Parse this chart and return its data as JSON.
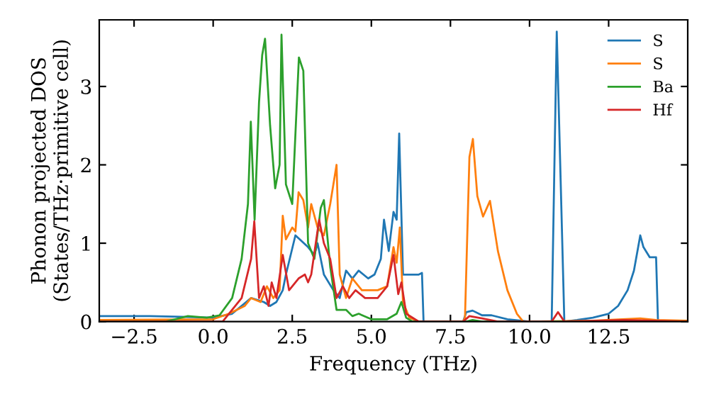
{
  "chart_data": {
    "type": "line",
    "xlabel": "Frequency (THz)",
    "ylabel": "Phonon projected DOS\n(States/THz·primitive cell)",
    "xlim": [
      -3.6,
      15.0
    ],
    "ylim": [
      0,
      3.85
    ],
    "xticks": [
      {
        "value": -2.5,
        "label": "−2.5"
      },
      {
        "value": 0,
        "label": "0.0"
      },
      2.5,
      {
        "value": 5,
        "label": "5.0"
      },
      7.5,
      {
        "value": 10,
        "label": "10.0"
      },
      12.5
    ],
    "yticks": [
      0,
      1,
      2,
      3
    ],
    "grid": false,
    "legend": "top right",
    "marker": "none",
    "line_style": "solid",
    "series": [
      {
        "name": "S",
        "color": "#1f77b4",
        "x": [
          -3.6,
          -2.0,
          -1.0,
          0.0,
          0.6,
          1.2,
          1.6,
          1.8,
          2.0,
          2.2,
          2.3,
          2.6,
          3.0,
          3.2,
          3.3,
          3.5,
          3.8,
          4.0,
          4.2,
          4.4,
          4.6,
          4.9,
          5.1,
          5.3,
          5.4,
          5.55,
          5.7,
          5.8,
          5.88,
          6.0,
          6.5,
          6.6,
          6.65,
          7.9,
          8.0,
          8.2,
          8.5,
          8.8,
          9.3,
          10.0,
          10.7,
          10.86,
          11.1,
          11.5,
          12.0,
          12.5,
          12.8,
          13.1,
          13.3,
          13.5,
          13.6,
          13.8,
          14.0,
          14.06
        ],
        "values": [
          0.07,
          0.07,
          0.06,
          0.05,
          0.1,
          0.3,
          0.25,
          0.2,
          0.25,
          0.4,
          0.6,
          1.1,
          0.95,
          0.85,
          1.0,
          0.6,
          0.4,
          0.3,
          0.65,
          0.55,
          0.65,
          0.55,
          0.6,
          0.8,
          1.3,
          0.9,
          1.4,
          1.3,
          2.4,
          0.6,
          0.6,
          0.62,
          0,
          0,
          0.12,
          0.14,
          0.08,
          0.08,
          0.03,
          0,
          0,
          3.7,
          0,
          0.02,
          0.05,
          0.1,
          0.2,
          0.4,
          0.65,
          1.1,
          0.95,
          0.82,
          0.82,
          0
        ]
      },
      {
        "name": "S",
        "color": "#ff7f0e",
        "x": [
          -3.6,
          0.0,
          0.5,
          1.0,
          1.2,
          1.5,
          1.7,
          1.9,
          2.1,
          2.2,
          2.3,
          2.5,
          2.6,
          2.7,
          2.85,
          3.0,
          3.1,
          3.3,
          3.5,
          3.7,
          3.9,
          4.0,
          4.2,
          4.4,
          4.7,
          5.2,
          5.5,
          5.7,
          5.8,
          5.9,
          6.0,
          6.2,
          6.5,
          7.9,
          7.96,
          8.1,
          8.21,
          8.35,
          8.53,
          8.75,
          9.0,
          9.3,
          9.6,
          9.8,
          12.0,
          13.5,
          14.0,
          15.0
        ],
        "values": [
          0.02,
          0.03,
          0.1,
          0.2,
          0.3,
          0.25,
          0.45,
          0.3,
          0.4,
          1.35,
          1.05,
          1.2,
          1.15,
          1.65,
          1.55,
          1.2,
          1.5,
          1.2,
          1.1,
          1.5,
          2.0,
          0.6,
          0.3,
          0.55,
          0.4,
          0.4,
          0.45,
          0.95,
          0.75,
          1.2,
          0.25,
          0.05,
          0,
          0,
          0.05,
          2.1,
          2.33,
          1.6,
          1.34,
          1.54,
          0.9,
          0.4,
          0.1,
          0,
          0.01,
          0.04,
          0.02,
          0.01
        ]
      },
      {
        "name": "Ba",
        "color": "#2ca02c",
        "x": [
          -3.6,
          -1.5,
          -0.8,
          -0.2,
          0.2,
          0.6,
          0.9,
          1.1,
          1.19,
          1.31,
          1.45,
          1.55,
          1.64,
          1.8,
          1.96,
          2.1,
          2.16,
          2.3,
          2.5,
          2.71,
          2.85,
          3.0,
          3.2,
          3.4,
          3.5,
          3.7,
          3.9,
          4.2,
          4.4,
          4.6,
          5.0,
          5.5,
          5.8,
          5.95,
          6.1,
          6.3,
          8.0,
          8.2,
          8.5,
          15.0
        ],
        "values": [
          0.0,
          0.0,
          0.07,
          0.05,
          0.08,
          0.3,
          0.8,
          1.5,
          2.55,
          1.3,
          2.8,
          3.4,
          3.61,
          2.5,
          1.7,
          2.0,
          3.66,
          1.75,
          1.5,
          3.37,
          3.2,
          1.0,
          0.8,
          1.45,
          1.55,
          0.7,
          0.15,
          0.15,
          0.07,
          0.1,
          0.03,
          0.03,
          0.1,
          0.25,
          0.05,
          0,
          0,
          0.02,
          0,
          0
        ]
      },
      {
        "name": "Hf",
        "color": "#d62728",
        "x": [
          -3.6,
          0.3,
          0.9,
          1.2,
          1.3,
          1.45,
          1.6,
          1.75,
          1.85,
          2.0,
          2.2,
          2.4,
          2.7,
          2.9,
          3.0,
          3.1,
          3.35,
          3.5,
          3.7,
          3.9,
          4.1,
          4.3,
          4.5,
          4.8,
          5.2,
          5.5,
          5.7,
          5.85,
          5.95,
          6.1,
          6.5,
          7.9,
          8.1,
          8.5,
          9.0,
          10.7,
          10.9,
          11.1,
          13.0,
          15.0
        ],
        "values": [
          0.0,
          0.0,
          0.3,
          0.8,
          1.28,
          0.3,
          0.45,
          0.2,
          0.5,
          0.3,
          0.85,
          0.4,
          0.55,
          0.6,
          0.5,
          0.6,
          1.3,
          1.0,
          0.8,
          0.3,
          0.45,
          0.3,
          0.4,
          0.3,
          0.3,
          0.45,
          0.85,
          0.35,
          0.5,
          0.1,
          0,
          0,
          0.07,
          0.04,
          0,
          0,
          0.12,
          0,
          0.02,
          0
        ]
      }
    ]
  }
}
